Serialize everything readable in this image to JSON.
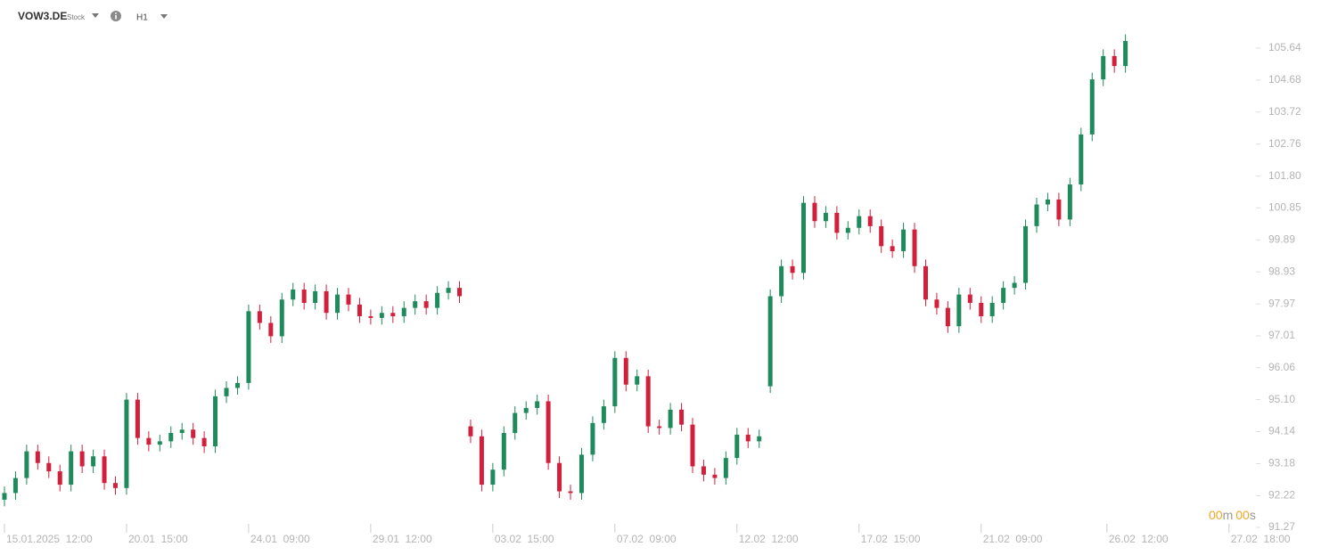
{
  "chart_data": {
    "type": "candlestick",
    "symbol": "VOW3.DE",
    "instrument_type": "Stock",
    "timeframe": "H1",
    "countdown": [
      "00",
      "m",
      "00",
      "s"
    ],
    "up_color": "#1f8a5b",
    "down_color": "#d21f3c",
    "x": [
      0,
      3,
      6,
      9,
      12,
      15,
      18,
      21,
      24,
      27,
      30,
      33,
      36,
      39,
      42,
      45,
      48,
      51,
      54,
      57,
      60,
      63,
      66,
      69,
      72,
      75,
      78,
      81,
      84,
      87,
      90,
      93,
      96,
      99,
      102,
      105,
      108,
      111,
      114,
      117,
      120,
      123,
      126,
      129,
      132,
      135,
      138,
      141,
      144,
      147,
      150,
      153,
      156,
      159,
      162,
      165,
      168,
      171,
      174,
      177,
      180,
      183,
      186,
      189,
      192,
      195,
      198,
      201,
      204,
      207,
      210,
      213,
      216,
      219,
      222,
      225,
      228,
      231,
      234,
      237,
      240,
      243,
      246,
      249,
      252,
      255,
      258,
      261,
      264,
      267,
      270,
      273,
      276,
      279,
      282,
      285,
      288,
      291,
      294,
      297,
      300,
      303
    ],
    "open": [
      92.1,
      92.3,
      92.75,
      93.55,
      93.2,
      92.95,
      92.55,
      93.55,
      93.1,
      93.4,
      92.6,
      92.45,
      95.1,
      93.95,
      93.75,
      93.85,
      94.1,
      94.2,
      93.95,
      93.7,
      95.2,
      95.45,
      95.6,
      97.75,
      97.4,
      97.0,
      98.1,
      98.4,
      98.0,
      98.35,
      97.7,
      98.25,
      97.95,
      97.6,
      97.55,
      97.7,
      97.6,
      97.85,
      98.05,
      97.85,
      98.3,
      98.45,
      94.3,
      94.0,
      92.55,
      93.0,
      94.1,
      94.7,
      94.85,
      95.05,
      93.2,
      92.35,
      92.3,
      93.45,
      94.4,
      94.9,
      96.35,
      95.55,
      95.8,
      94.3,
      94.25,
      94.8,
      94.35,
      93.1,
      92.85,
      92.75,
      93.35,
      94.05,
      93.85,
      95.5,
      98.2,
      99.1,
      98.9,
      101.0,
      100.45,
      100.7,
      100.1,
      100.25,
      100.6,
      100.3,
      99.7,
      99.55,
      100.2,
      99.1,
      98.1,
      97.85,
      97.3,
      98.25,
      98.0,
      97.6,
      98.0,
      98.45,
      98.6,
      100.3,
      100.95,
      101.1,
      100.5,
      101.55,
      103.05,
      104.7,
      105.4,
      105.1
    ],
    "high": [
      92.5,
      92.95,
      93.75,
      93.75,
      93.4,
      93.15,
      93.75,
      93.75,
      93.6,
      93.6,
      92.8,
      95.3,
      95.3,
      94.15,
      94.05,
      94.3,
      94.4,
      94.4,
      94.15,
      95.4,
      95.65,
      95.8,
      97.95,
      97.95,
      97.6,
      98.3,
      98.6,
      98.6,
      98.55,
      98.55,
      98.45,
      98.45,
      98.15,
      97.8,
      97.9,
      97.9,
      98.05,
      98.25,
      98.25,
      98.5,
      98.65,
      98.65,
      94.5,
      94.2,
      93.2,
      94.3,
      94.9,
      95.05,
      95.25,
      95.25,
      93.4,
      92.55,
      93.65,
      94.6,
      95.1,
      96.55,
      96.55,
      96.0,
      96.0,
      94.5,
      95.0,
      95.0,
      94.55,
      93.3,
      93.05,
      93.55,
      94.25,
      94.25,
      94.2,
      98.4,
      99.3,
      99.3,
      101.2,
      101.2,
      100.9,
      100.9,
      100.45,
      100.8,
      100.8,
      100.5,
      99.9,
      100.4,
      100.4,
      99.3,
      98.3,
      98.05,
      98.45,
      98.45,
      98.2,
      98.2,
      98.65,
      98.8,
      100.5,
      101.15,
      101.3,
      101.3,
      101.75,
      103.25,
      104.9,
      105.6,
      105.6,
      106.05
    ],
    "low": [
      91.9,
      92.1,
      92.55,
      93.0,
      92.75,
      92.35,
      92.35,
      92.9,
      92.9,
      92.4,
      92.25,
      92.25,
      93.75,
      93.55,
      93.55,
      93.65,
      93.9,
      93.75,
      93.5,
      93.5,
      95.0,
      95.25,
      95.4,
      97.2,
      96.8,
      96.8,
      97.9,
      97.8,
      97.8,
      97.5,
      97.5,
      97.75,
      97.4,
      97.35,
      97.35,
      97.4,
      97.4,
      97.65,
      97.65,
      97.65,
      98.1,
      98.0,
      93.8,
      92.35,
      92.35,
      92.8,
      93.9,
      94.5,
      94.65,
      93.0,
      92.15,
      92.1,
      92.1,
      93.25,
      94.2,
      94.7,
      95.35,
      95.35,
      94.1,
      94.05,
      94.05,
      94.15,
      92.9,
      92.65,
      92.55,
      92.55,
      93.15,
      93.65,
      93.65,
      95.3,
      98.0,
      98.7,
      98.7,
      100.25,
      100.25,
      99.9,
      99.9,
      100.05,
      100.1,
      99.5,
      99.35,
      99.35,
      98.9,
      97.9,
      97.65,
      97.1,
      97.1,
      97.8,
      97.4,
      97.4,
      97.8,
      98.25,
      98.4,
      100.1,
      100.75,
      100.3,
      100.3,
      101.35,
      102.85,
      104.5,
      104.9,
      104.9
    ],
    "close": [
      92.3,
      92.75,
      93.55,
      93.2,
      92.95,
      92.55,
      93.55,
      93.1,
      93.4,
      92.6,
      92.45,
      95.1,
      93.95,
      93.75,
      93.85,
      94.1,
      94.2,
      93.95,
      93.7,
      95.2,
      95.45,
      95.6,
      97.75,
      97.4,
      97.0,
      98.1,
      98.4,
      98.0,
      98.35,
      97.7,
      98.25,
      97.95,
      97.6,
      97.55,
      97.7,
      97.6,
      97.85,
      98.05,
      97.85,
      98.3,
      98.45,
      98.2,
      94.0,
      92.55,
      93.0,
      94.1,
      94.7,
      94.85,
      95.05,
      93.2,
      92.35,
      92.3,
      93.45,
      94.4,
      94.9,
      96.35,
      95.55,
      95.8,
      94.3,
      94.25,
      94.8,
      94.35,
      93.1,
      92.85,
      92.75,
      93.35,
      94.05,
      93.85,
      94.0,
      98.2,
      99.1,
      98.9,
      101.0,
      100.45,
      100.7,
      100.1,
      100.25,
      100.6,
      100.3,
      99.7,
      99.55,
      100.2,
      99.1,
      98.1,
      97.85,
      97.3,
      98.25,
      98.0,
      97.6,
      98.0,
      98.45,
      98.6,
      100.3,
      100.95,
      101.1,
      100.5,
      101.55,
      103.05,
      104.7,
      105.4,
      105.1,
      105.85
    ],
    "xlim": [
      -1.2,
      336.1
    ],
    "xticks": [
      {
        "value": 0,
        "label": "15.01.2025  12:00"
      },
      {
        "value": 33,
        "label": "20.01  15:00"
      },
      {
        "value": 66,
        "label": "24.01  09:00"
      },
      {
        "value": 99,
        "label": "29.01  12:00"
      },
      {
        "value": 132,
        "label": "03.02  15:00"
      },
      {
        "value": 165,
        "label": "07.02  09:00"
      },
      {
        "value": 198,
        "label": "12.02  12:00"
      },
      {
        "value": 231,
        "label": "17.02  15:00"
      },
      {
        "value": 264,
        "label": "21.02  09:00"
      },
      {
        "value": 298,
        "label": "26.02  12:00"
      },
      {
        "value": 331,
        "label": "27.02  18:00"
      }
    ],
    "ylim": [
      91.27,
      107.08
    ],
    "yticks": [
      105.64,
      104.68,
      103.72,
      102.76,
      {
        "value": 101.8,
        "label": "101.80"
      },
      100.85,
      99.89,
      98.93,
      97.97,
      97.01,
      96.06,
      {
        "value": 95.1,
        "label": "95.10"
      },
      94.14,
      93.18,
      92.22,
      91.27
    ]
  }
}
